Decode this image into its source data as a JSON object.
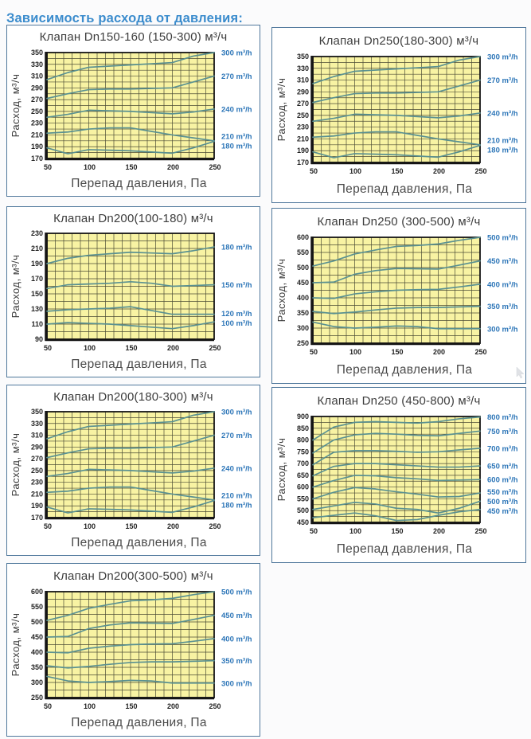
{
  "page": {
    "heading": "Зависимость расхода от давления:"
  },
  "colors": {
    "heading_blue": "#3b8ccd",
    "label_blue": "#2d76b8",
    "line": "#5a9191",
    "plot_bg": "#f8f3a3",
    "grid": "#4b4b35",
    "frame": "#141414",
    "panel_border": "#50789c",
    "title_text": "#3d3d3d"
  },
  "chart_data": [
    {
      "type": "line",
      "title": "Клапан Dn150-160 (150-300) м³/ч",
      "xlabel": "Перепад давления, Па",
      "ylabel": "Расход, м³/ч",
      "xlim": [
        50,
        250
      ],
      "ylim": [
        170,
        350
      ],
      "xticks": [
        50,
        100,
        150,
        200,
        250
      ],
      "ytick_step": 20,
      "x_minor": 10,
      "y_minor": 10,
      "grid": true,
      "legend_position": "right",
      "x": [
        50,
        75,
        100,
        125,
        150,
        175,
        200,
        225,
        250
      ],
      "series": [
        {
          "name": "300 m³/h",
          "values": [
            304,
            316,
            325,
            327,
            329,
            331,
            333,
            344,
            350
          ]
        },
        {
          "name": "270 m³/h",
          "values": [
            272,
            280,
            287,
            288,
            288,
            289,
            290,
            300,
            310
          ]
        },
        {
          "name": "240 m³/h",
          "values": [
            240,
            245,
            252,
            251,
            250,
            248,
            246,
            249,
            254
          ]
        },
        {
          "name": "210 m³/h",
          "values": [
            213,
            215,
            220,
            222,
            222,
            216,
            210,
            205,
            200
          ]
        },
        {
          "name": "180 m³/h",
          "values": [
            188,
            178,
            185,
            184,
            183,
            181,
            179,
            188,
            199
          ]
        }
      ]
    },
    {
      "type": "line",
      "title": "Клапан Dn250(180-300) м³/ч",
      "xlabel": "Перепад давления, Па",
      "ylabel": "Расход, м³/ч",
      "xlim": [
        50,
        250
      ],
      "ylim": [
        170,
        350
      ],
      "xticks": [
        50,
        100,
        150,
        200,
        250
      ],
      "ytick_step": 20,
      "x_minor": 10,
      "y_minor": 10,
      "grid": true,
      "legend_position": "right",
      "x": [
        50,
        75,
        100,
        125,
        150,
        175,
        200,
        225,
        250
      ],
      "series": [
        {
          "name": "300 m³/h",
          "values": [
            304,
            316,
            325,
            327,
            329,
            331,
            333,
            344,
            350
          ]
        },
        {
          "name": "270 m³/h",
          "values": [
            272,
            280,
            287,
            288,
            288,
            289,
            290,
            300,
            310
          ]
        },
        {
          "name": "240 m³/h",
          "values": [
            240,
            245,
            252,
            251,
            250,
            248,
            246,
            249,
            254
          ]
        },
        {
          "name": "210 m³/h",
          "values": [
            213,
            215,
            220,
            222,
            222,
            216,
            210,
            205,
            200
          ]
        },
        {
          "name": "180 m³/h",
          "values": [
            188,
            178,
            185,
            184,
            183,
            181,
            179,
            188,
            199
          ]
        }
      ]
    },
    {
      "type": "line",
      "title": "Клапан Dn200(100-180) м³/ч",
      "xlabel": "Перепад давления, Па",
      "ylabel": "Расход, м³/ч",
      "xlim": [
        50,
        250
      ],
      "ylim": [
        90,
        230
      ],
      "xticks": [
        50,
        100,
        150,
        200,
        250
      ],
      "ytick_step": 20,
      "x_minor": 10,
      "y_minor": 10,
      "grid": true,
      "legend_position": "right",
      "x": [
        50,
        75,
        100,
        125,
        150,
        175,
        200,
        225,
        250
      ],
      "series": [
        {
          "name": "180 m³/h",
          "values": [
            190,
            197,
            201,
            203,
            205,
            204,
            203,
            207,
            212
          ]
        },
        {
          "name": "150 m³/h",
          "values": [
            157,
            162,
            163,
            164,
            166,
            164,
            160,
            161,
            162
          ]
        },
        {
          "name": "120 m³/h",
          "values": [
            127,
            129,
            130,
            131,
            133,
            128,
            123,
            123,
            123
          ]
        },
        {
          "name": "100 m³/h",
          "values": [
            110,
            112,
            111,
            110,
            108,
            106,
            104,
            108,
            113
          ]
        }
      ]
    },
    {
      "type": "line",
      "title": "Клапан Dn250 (300-500) м³/ч",
      "xlabel": "Перепад давления, Па",
      "ylabel": "Расход, м³/ч",
      "xlim": [
        50,
        250
      ],
      "ylim": [
        250,
        600
      ],
      "xticks": [
        50,
        100,
        150,
        200,
        250
      ],
      "ytick_step": 50,
      "x_minor": 10,
      "y_minor": 25,
      "grid": true,
      "legend_position": "right",
      "x": [
        50,
        75,
        100,
        125,
        150,
        175,
        200,
        225,
        250
      ],
      "series": [
        {
          "name": "500 m³/h",
          "values": [
            505,
            522,
            545,
            558,
            570,
            573,
            578,
            590,
            600
          ]
        },
        {
          "name": "450 m³/h",
          "values": [
            450,
            452,
            478,
            490,
            497,
            496,
            495,
            508,
            522
          ]
        },
        {
          "name": "400 m³/h",
          "values": [
            400,
            398,
            413,
            420,
            425,
            427,
            428,
            436,
            445
          ]
        },
        {
          "name": "350 m³/h",
          "values": [
            355,
            348,
            353,
            360,
            366,
            368,
            368,
            370,
            372
          ]
        },
        {
          "name": "300 m³/h",
          "values": [
            320,
            305,
            300,
            303,
            307,
            305,
            298,
            298,
            298
          ]
        }
      ]
    },
    {
      "type": "line",
      "title": "Клапан Dn200(180-300) м³/ч",
      "xlabel": "Перепад давления, Па",
      "ylabel": "Расход, м³/ч",
      "xlim": [
        50,
        250
      ],
      "ylim": [
        170,
        350
      ],
      "xticks": [
        50,
        100,
        150,
        200,
        250
      ],
      "ytick_step": 20,
      "x_minor": 10,
      "y_minor": 10,
      "grid": true,
      "legend_position": "right",
      "x": [
        50,
        75,
        100,
        125,
        150,
        175,
        200,
        225,
        250
      ],
      "series": [
        {
          "name": "300 m³/h",
          "values": [
            304,
            316,
            325,
            327,
            329,
            331,
            333,
            344,
            350
          ]
        },
        {
          "name": "270 m³/h",
          "values": [
            272,
            280,
            287,
            288,
            288,
            289,
            290,
            300,
            310
          ]
        },
        {
          "name": "240 m³/h",
          "values": [
            240,
            245,
            252,
            251,
            250,
            248,
            246,
            249,
            254
          ]
        },
        {
          "name": "210 m³/h",
          "values": [
            213,
            215,
            220,
            222,
            222,
            216,
            210,
            205,
            200
          ]
        },
        {
          "name": "180 m³/h",
          "values": [
            188,
            178,
            185,
            184,
            183,
            181,
            179,
            188,
            199
          ]
        }
      ]
    },
    {
      "type": "line",
      "title": "Клапан Dn250 (450-800) м³/ч",
      "xlabel": "Перепад давления, Па",
      "ylabel": "Расход, м³/ч",
      "xlim": [
        50,
        250
      ],
      "ylim": [
        450,
        900
      ],
      "xticks": [
        50,
        100,
        150,
        200,
        250
      ],
      "ytick_step": 50,
      "x_minor": 10,
      "y_minor": 25,
      "grid": true,
      "legend_position": "right",
      "x": [
        50,
        75,
        100,
        125,
        150,
        175,
        200,
        225,
        250
      ],
      "series": [
        {
          "name": "800 m³/h",
          "values": [
            800,
            855,
            875,
            878,
            875,
            872,
            878,
            890,
            898
          ]
        },
        {
          "name": "750 m³/h",
          "values": [
            745,
            800,
            822,
            828,
            825,
            820,
            818,
            828,
            838
          ]
        },
        {
          "name": "700 m³/h",
          "values": [
            695,
            748,
            755,
            755,
            752,
            748,
            750,
            758,
            765
          ]
        },
        {
          "name": "650 m³/h",
          "values": [
            648,
            688,
            700,
            700,
            695,
            690,
            685,
            685,
            690
          ]
        },
        {
          "name": "600 m³/h",
          "values": [
            600,
            628,
            650,
            648,
            640,
            635,
            628,
            630,
            632
          ]
        },
        {
          "name": "550 m³/h",
          "values": [
            550,
            578,
            598,
            592,
            580,
            570,
            558,
            560,
            575
          ]
        },
        {
          "name": "500 m³/h",
          "values": [
            505,
            520,
            535,
            528,
            510,
            505,
            490,
            510,
            540
          ]
        },
        {
          "name": "450 m³/h",
          "values": [
            470,
            480,
            490,
            478,
            458,
            462,
            480,
            495,
            505
          ]
        }
      ]
    },
    {
      "type": "line",
      "title": "Клапан Dn200(300-500) м³/ч",
      "xlabel": "Перепад давления, Па",
      "ylabel": "Расход, м³/ч",
      "xlim": [
        50,
        250
      ],
      "ylim": [
        250,
        600
      ],
      "xticks": [
        50,
        100,
        150,
        200,
        250
      ],
      "ytick_step": 50,
      "x_minor": 10,
      "y_minor": 25,
      "grid": true,
      "legend_position": "right",
      "x": [
        50,
        75,
        100,
        125,
        150,
        175,
        200,
        225,
        250
      ],
      "series": [
        {
          "name": "500 m³/h",
          "values": [
            505,
            522,
            545,
            558,
            570,
            573,
            578,
            590,
            600
          ]
        },
        {
          "name": "450 m³/h",
          "values": [
            450,
            452,
            478,
            490,
            497,
            496,
            495,
            508,
            522
          ]
        },
        {
          "name": "400 m³/h",
          "values": [
            400,
            398,
            413,
            420,
            425,
            427,
            428,
            436,
            445
          ]
        },
        {
          "name": "350 m³/h",
          "values": [
            355,
            348,
            353,
            360,
            366,
            368,
            368,
            370,
            372
          ]
        },
        {
          "name": "300 m³/h",
          "values": [
            320,
            305,
            300,
            303,
            307,
            305,
            298,
            298,
            298
          ]
        }
      ]
    }
  ]
}
